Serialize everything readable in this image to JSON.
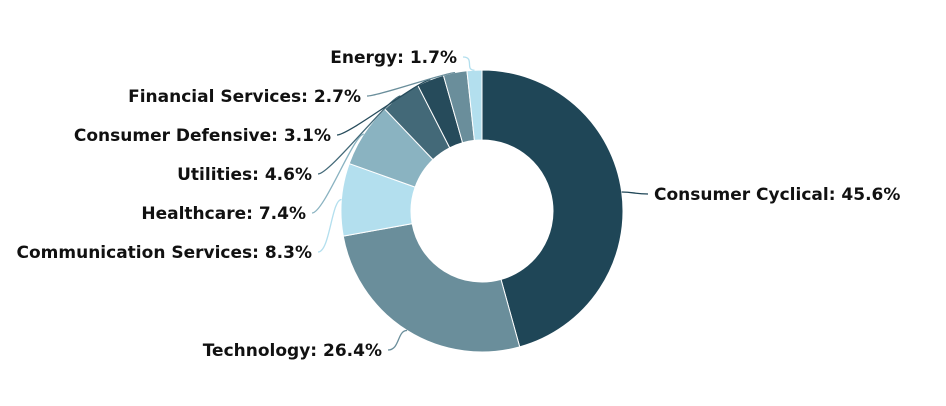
{
  "chart_data": {
    "type": "pie",
    "title": "",
    "donut": true,
    "legend": "none",
    "slices": [
      {
        "name": "Consumer Cyclical",
        "value": 45.6,
        "label": "Consumer Cyclical: 45.6%",
        "color": "#1f4657"
      },
      {
        "name": "Technology",
        "value": 26.4,
        "label": "Technology: 26.4%",
        "color": "#6a8e9b"
      },
      {
        "name": "Communication Services",
        "value": 8.3,
        "label": "Communication Services: 8.3%",
        "color": "#b3dfee"
      },
      {
        "name": "Healthcare",
        "value": 7.4,
        "label": "Healthcare: 7.4%",
        "color": "#8ab3c1"
      },
      {
        "name": "Utilities",
        "value": 4.6,
        "label": "Utilities: 4.6%",
        "color": "#436978"
      },
      {
        "name": "Consumer Defensive",
        "value": 3.1,
        "label": "Consumer Defensive: 3.1%",
        "color": "#264b5b"
      },
      {
        "name": "Financial Services",
        "value": 2.7,
        "label": "Financial Services: 2.7%",
        "color": "#6a8e9b"
      },
      {
        "name": "Energy",
        "value": 1.7,
        "label": "Energy: 1.7%",
        "color": "#b3dfee"
      }
    ]
  }
}
